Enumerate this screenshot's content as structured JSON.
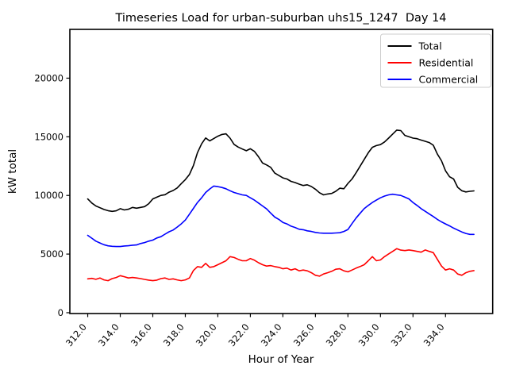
{
  "chart_data": {
    "type": "line",
    "title": "Timeseries Load for urban-suburban uhs15_1247  Day 14",
    "xlabel": "Hour of Year",
    "ylabel": "kW total",
    "legend_position": "upper right",
    "grid": false,
    "xlim": [
      310.9,
      336.9
    ],
    "ylim": [
      -70,
      24160
    ],
    "x_tick_positions": [
      312,
      314,
      316,
      318,
      320,
      322,
      324,
      326,
      328,
      330,
      332,
      334
    ],
    "x_tick_labels": [
      "312.0",
      "314.0",
      "316.0",
      "318.0",
      "320.0",
      "322.0",
      "324.0",
      "326.0",
      "328.0",
      "330.0",
      "332.0",
      "334.0"
    ],
    "y_tick_positions": [
      0,
      5000,
      10000,
      15000,
      20000
    ],
    "y_tick_labels": [
      "0",
      "5000",
      "10000",
      "15000",
      "20000"
    ],
    "x": [
      312.0,
      312.25,
      312.5,
      312.75,
      313.0,
      313.25,
      313.5,
      313.75,
      314.0,
      314.25,
      314.5,
      314.75,
      315.0,
      315.25,
      315.5,
      315.75,
      316.0,
      316.25,
      316.5,
      316.75,
      317.0,
      317.25,
      317.5,
      317.75,
      318.0,
      318.25,
      318.5,
      318.75,
      319.0,
      319.25,
      319.5,
      319.75,
      320.0,
      320.25,
      320.5,
      320.75,
      321.0,
      321.25,
      321.5,
      321.75,
      322.0,
      322.25,
      322.5,
      322.75,
      323.0,
      323.25,
      323.5,
      323.75,
      324.0,
      324.25,
      324.5,
      324.75,
      325.0,
      325.25,
      325.5,
      325.75,
      326.0,
      326.25,
      326.5,
      326.75,
      327.0,
      327.25,
      327.5,
      327.75,
      328.0,
      328.25,
      328.5,
      328.75,
      329.0,
      329.25,
      329.5,
      329.75,
      330.0,
      330.25,
      330.5,
      330.75,
      331.0,
      331.25,
      331.5,
      331.75,
      332.0,
      332.25,
      332.5,
      332.75,
      333.0,
      333.25,
      333.5,
      333.75,
      334.0,
      334.25,
      334.5,
      334.75,
      335.0,
      335.25,
      335.5,
      335.75
    ],
    "series": [
      {
        "name": "Total",
        "color": "#000000",
        "values": [
          9700,
          9350,
          9100,
          8950,
          8800,
          8700,
          8640,
          8690,
          8870,
          8760,
          8820,
          8980,
          8910,
          8980,
          9050,
          9300,
          9700,
          9850,
          10000,
          10060,
          10280,
          10420,
          10640,
          11000,
          11350,
          11780,
          12550,
          13650,
          14400,
          14900,
          14650,
          14850,
          15050,
          15200,
          15250,
          14890,
          14350,
          14120,
          13960,
          13810,
          13980,
          13760,
          13300,
          12760,
          12600,
          12400,
          11900,
          11700,
          11500,
          11400,
          11200,
          11100,
          10960,
          10850,
          10910,
          10760,
          10530,
          10230,
          10050,
          10120,
          10170,
          10350,
          10620,
          10570,
          11030,
          11400,
          11930,
          12500,
          13070,
          13640,
          14100,
          14250,
          14330,
          14560,
          14890,
          15230,
          15570,
          15530,
          15120,
          15000,
          14890,
          14840,
          14720,
          14620,
          14510,
          14280,
          13530,
          12960,
          12100,
          11590,
          11400,
          10690,
          10400,
          10300,
          10350,
          10390
        ]
      },
      {
        "name": "Residential",
        "color": "#ff0000",
        "values": [
          2890,
          2930,
          2850,
          2960,
          2800,
          2730,
          2910,
          3000,
          3160,
          3070,
          2960,
          3000,
          2960,
          2910,
          2840,
          2780,
          2730,
          2780,
          2910,
          2960,
          2840,
          2890,
          2800,
          2730,
          2800,
          2960,
          3600,
          3930,
          3870,
          4210,
          3870,
          3930,
          4090,
          4260,
          4430,
          4780,
          4710,
          4550,
          4430,
          4430,
          4620,
          4480,
          4260,
          4090,
          3980,
          4020,
          3930,
          3870,
          3750,
          3800,
          3640,
          3750,
          3570,
          3640,
          3570,
          3410,
          3190,
          3120,
          3300,
          3410,
          3530,
          3710,
          3750,
          3570,
          3480,
          3640,
          3800,
          3940,
          4090,
          4430,
          4780,
          4430,
          4500,
          4780,
          5010,
          5230,
          5460,
          5340,
          5300,
          5350,
          5300,
          5230,
          5160,
          5350,
          5230,
          5120,
          4550,
          3980,
          3640,
          3750,
          3640,
          3300,
          3190,
          3410,
          3530,
          3590
        ]
      },
      {
        "name": "Commercial",
        "color": "#0000ff",
        "values": [
          6595,
          6350,
          6100,
          5950,
          5800,
          5700,
          5660,
          5640,
          5640,
          5690,
          5710,
          5760,
          5780,
          5900,
          5980,
          6100,
          6190,
          6370,
          6480,
          6700,
          6900,
          7050,
          7300,
          7570,
          7900,
          8400,
          8900,
          9400,
          9800,
          10250,
          10550,
          10800,
          10750,
          10680,
          10570,
          10400,
          10250,
          10150,
          10050,
          10000,
          9800,
          9600,
          9350,
          9100,
          8850,
          8500,
          8150,
          7960,
          7700,
          7570,
          7380,
          7270,
          7120,
          7080,
          6980,
          6930,
          6850,
          6800,
          6780,
          6780,
          6780,
          6800,
          6820,
          6930,
          7100,
          7600,
          8070,
          8480,
          8870,
          9150,
          9400,
          9600,
          9800,
          9950,
          10050,
          10100,
          10050,
          10000,
          9850,
          9700,
          9400,
          9150,
          8870,
          8650,
          8420,
          8200,
          7960,
          7750,
          7570,
          7400,
          7210,
          7050,
          6890,
          6760,
          6680,
          6680
        ]
      }
    ]
  }
}
